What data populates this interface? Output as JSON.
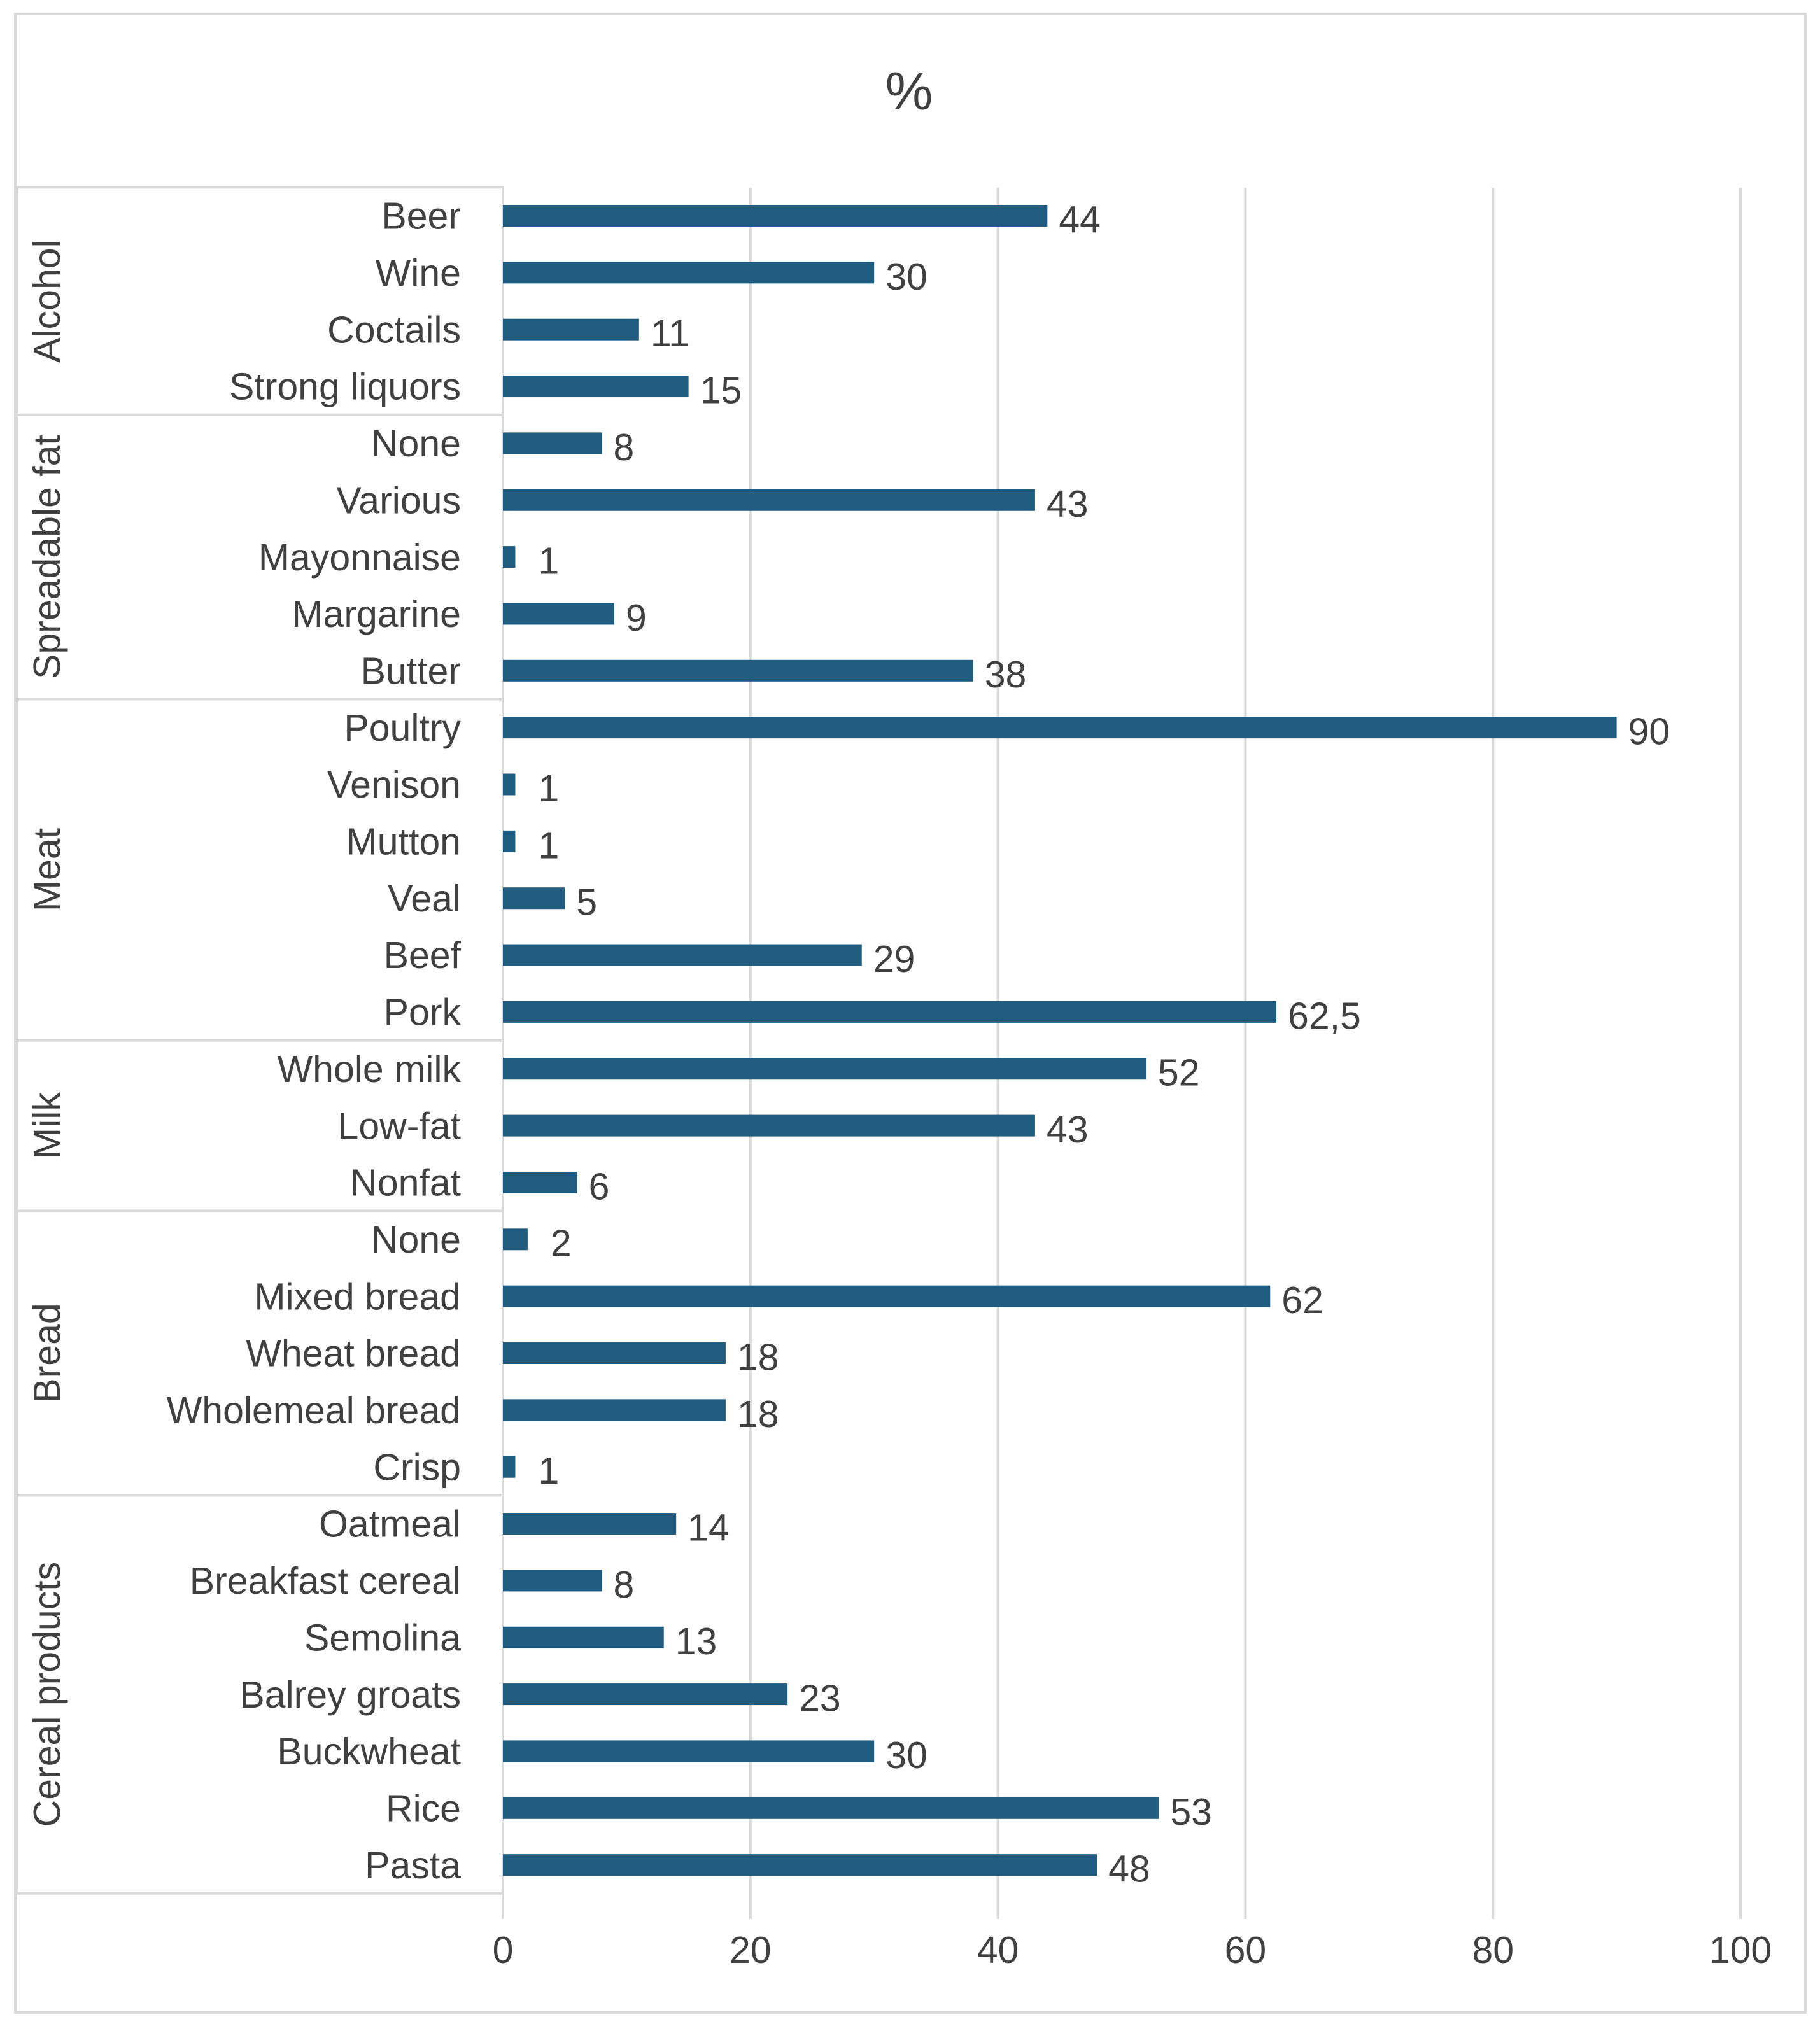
{
  "chart_data": {
    "type": "bar",
    "orientation": "horizontal",
    "title": "%",
    "xlabel": "",
    "ylabel": "",
    "xlim": [
      0,
      100
    ],
    "xticks": [
      "0",
      "20",
      "40",
      "60",
      "80",
      "100"
    ],
    "grid": true,
    "bar_color": "#1f5c80",
    "groups": [
      {
        "name": "Alcohol",
        "items": [
          {
            "label": "Beer",
            "value": 44,
            "value_label": "44"
          },
          {
            "label": "Wine",
            "value": 30,
            "value_label": "30"
          },
          {
            "label": "Coctails",
            "value": 11,
            "value_label": "11"
          },
          {
            "label": "Strong liquors",
            "value": 15,
            "value_label": "15"
          }
        ]
      },
      {
        "name": "Spreadable fat",
        "items": [
          {
            "label": "None",
            "value": 8,
            "value_label": "8"
          },
          {
            "label": "Various",
            "value": 43,
            "value_label": "43"
          },
          {
            "label": "Mayonnaise",
            "value": 1,
            "value_label": "1"
          },
          {
            "label": "Margarine",
            "value": 9,
            "value_label": "9"
          },
          {
            "label": "Butter",
            "value": 38,
            "value_label": "38"
          }
        ]
      },
      {
        "name": "Meat",
        "items": [
          {
            "label": "Poultry",
            "value": 90,
            "value_label": "90"
          },
          {
            "label": "Venison",
            "value": 1,
            "value_label": "1"
          },
          {
            "label": "Mutton",
            "value": 1,
            "value_label": "1"
          },
          {
            "label": "Veal",
            "value": 5,
            "value_label": "5"
          },
          {
            "label": "Beef",
            "value": 29,
            "value_label": "29"
          },
          {
            "label": "Pork",
            "value": 62.5,
            "value_label": "62,5"
          }
        ]
      },
      {
        "name": "Milk",
        "items": [
          {
            "label": "Whole milk",
            "value": 52,
            "value_label": "52"
          },
          {
            "label": "Low-fat",
            "value": 43,
            "value_label": "43"
          },
          {
            "label": "Nonfat",
            "value": 6,
            "value_label": "6"
          }
        ]
      },
      {
        "name": "Bread",
        "items": [
          {
            "label": "None",
            "value": 2,
            "value_label": "2"
          },
          {
            "label": "Mixed bread",
            "value": 62,
            "value_label": "62"
          },
          {
            "label": "Wheat bread",
            "value": 18,
            "value_label": "18"
          },
          {
            "label": "Wholemeal bread",
            "value": 18,
            "value_label": "18"
          },
          {
            "label": "Crisp",
            "value": 1,
            "value_label": "1"
          }
        ]
      },
      {
        "name": "Cereal products",
        "items": [
          {
            "label": "Oatmeal",
            "value": 14,
            "value_label": "14"
          },
          {
            "label": "Breakfast cereal",
            "value": 8,
            "value_label": "8"
          },
          {
            "label": "Semolina",
            "value": 13,
            "value_label": "13"
          },
          {
            "label": "Balrey groats",
            "value": 23,
            "value_label": "23"
          },
          {
            "label": "Buckwheat",
            "value": 30,
            "value_label": "30"
          },
          {
            "label": "Rice",
            "value": 53,
            "value_label": "53"
          },
          {
            "label": "Pasta",
            "value": 48,
            "value_label": "48"
          }
        ]
      }
    ]
  }
}
